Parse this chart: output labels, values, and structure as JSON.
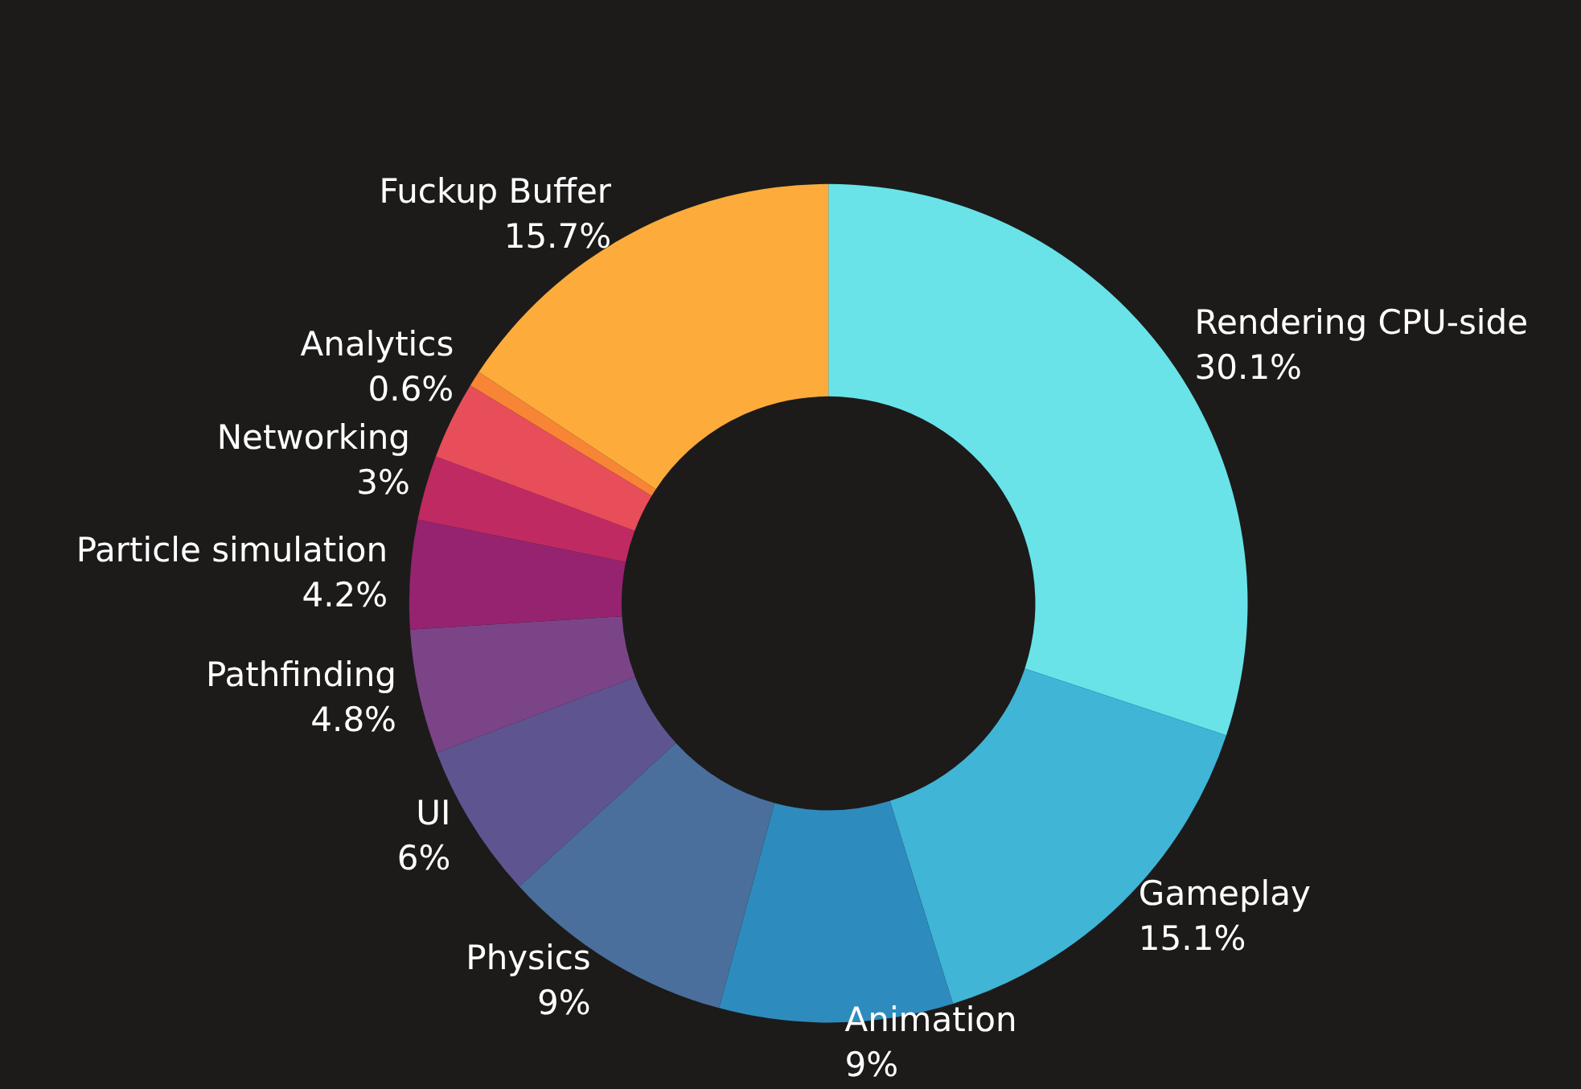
{
  "chart_data": {
    "type": "donut",
    "categories": [
      "Rendering CPU-side",
      "Gameplay",
      "Animation",
      "Physics",
      "UI",
      "Pathfinding",
      "Particle simulation",
      null,
      "Networking",
      "Analytics",
      "Fuckup Buffer"
    ],
    "values": [
      30.1,
      15.1,
      9,
      9,
      6,
      4.8,
      4.2,
      2.5,
      3,
      0.6,
      15.7
    ],
    "colors": [
      "#69e3e8",
      "#40b5d6",
      "#2e8bbd",
      "#4a6f9c",
      "#5e5590",
      "#7b4487",
      "#952370",
      "#c02a63",
      "#e84d5a",
      "#f78535",
      "#fdab3b"
    ],
    "value_labels": [
      "30.1%",
      "15.1%",
      "9%",
      "9%",
      "6%",
      "4.8%",
      "4.2%",
      null,
      "3%",
      "0.6%",
      "15.7%"
    ],
    "legend": false
  }
}
